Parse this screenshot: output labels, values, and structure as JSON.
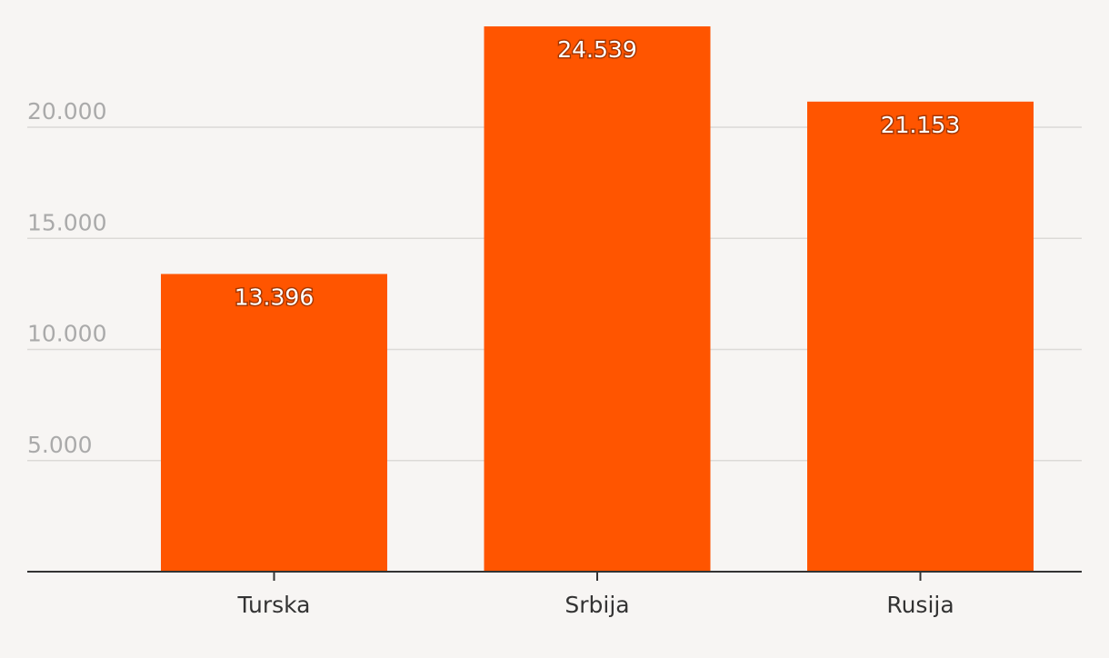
{
  "chart_data": {
    "type": "bar",
    "categories": [
      "Turska",
      "Srbija",
      "Rusija"
    ],
    "values": [
      13396,
      24539,
      21153
    ],
    "value_labels": [
      "13.396",
      "24.539",
      "21.153"
    ],
    "title": "",
    "xlabel": "",
    "ylabel": "",
    "ylim": [
      0,
      25000
    ],
    "yticks": [
      5000,
      10000,
      15000,
      20000
    ],
    "ytick_labels": [
      "5.000",
      "10.000",
      "15.000",
      "20.000"
    ],
    "grid": true,
    "legend": "none",
    "colors": {
      "bar": "#ff5500",
      "background": "#f7f5f3",
      "grid": "#dcdad7",
      "axis": "#333333",
      "ytick_text": "#aaaaaa",
      "xtick_text": "#333333",
      "data_label_text": "#ffffff"
    }
  }
}
